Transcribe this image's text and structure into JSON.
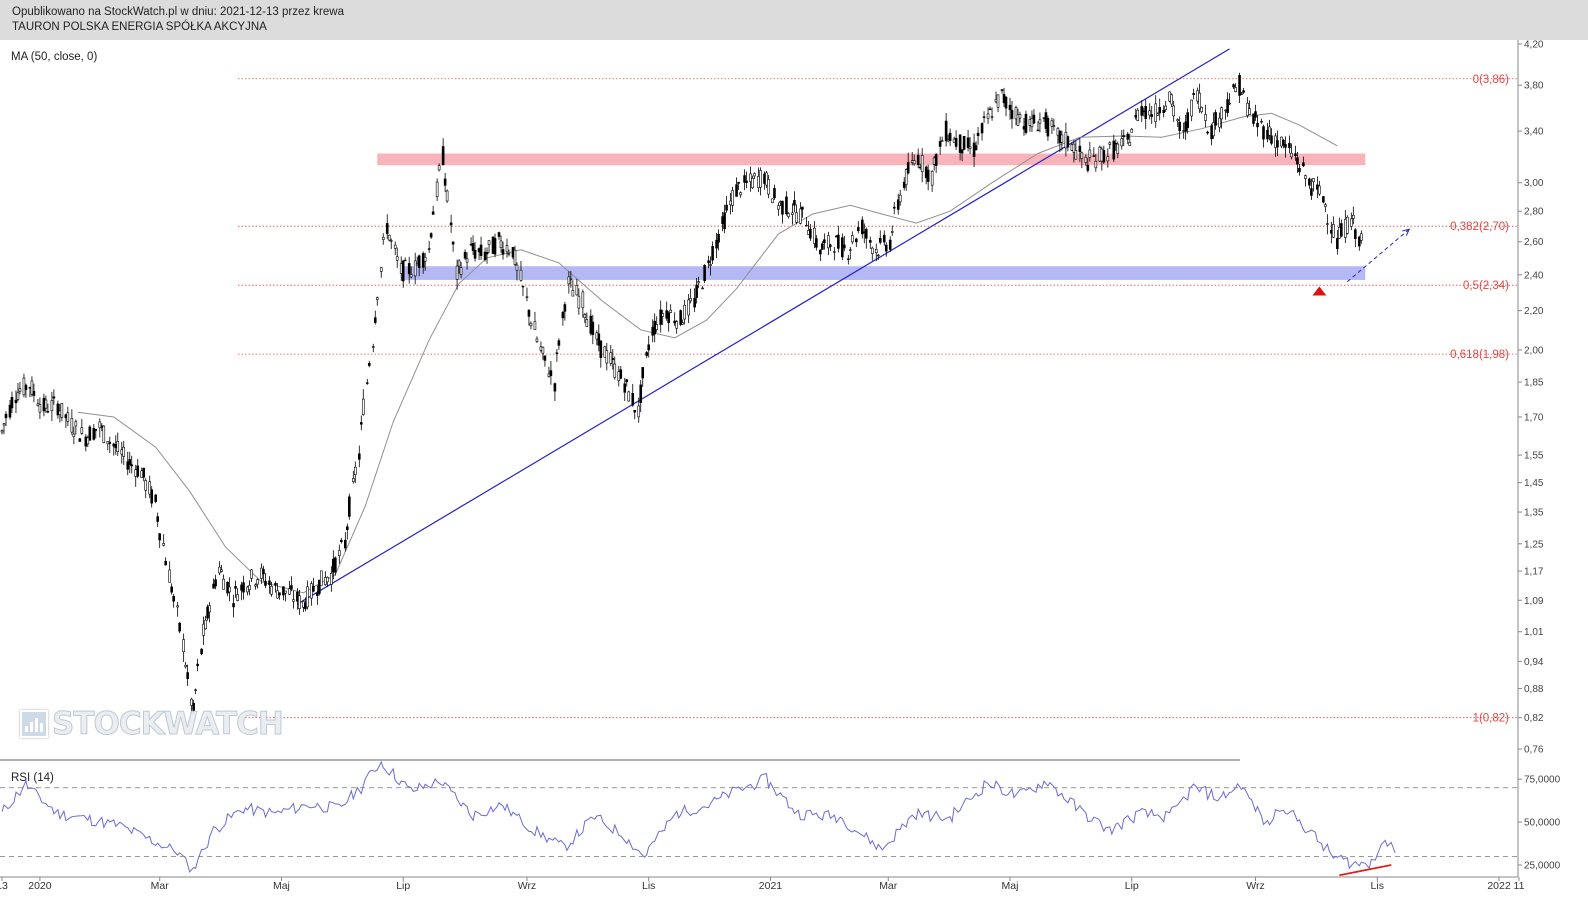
{
  "header": {
    "published": "Opublikowano na StockWatch.pl w dniu: 2021-12-13 przez krewa",
    "instrument": "TAURON POLSKA ENERGIA SPÓŁKA AKCYJNA"
  },
  "indicator_label": "MA (50, close, 0)",
  "rsi_label": "RSI (14)",
  "watermark": "STOCKWATCH",
  "colors": {
    "fib": "#e04848",
    "resistance_zone": "#f8b4ba",
    "support_zone": "#b4b8f4",
    "trendline": "#2222cc",
    "ma": "#909090",
    "rsi": "#6b6bd6",
    "rsi_divergence": "#e02020",
    "candles": "#000000"
  },
  "chart_data": [
    {
      "type": "line",
      "subtype": "candlestick",
      "title": "TAURON POLSKA ENERGIA SPÓŁKA AKCYJNA",
      "y_scale": "log",
      "ylim": [
        0.74,
        4.22
      ],
      "y_ticks": [
        "4,20",
        "3,80",
        "3,40",
        "3,00",
        "2,80",
        "2,60",
        "2,40",
        "2,20",
        "2,00",
        "1,85",
        "1,70",
        "1,55",
        "1,45",
        "1,35",
        "1,25",
        "1,17",
        "1,09",
        "1,01",
        "0,94",
        "0,88",
        "0,82",
        "0,76"
      ],
      "x_ticks": [
        "13",
        "2020",
        "Mar",
        "Maj",
        "Lip",
        "Wrz",
        "Lis",
        "2021",
        "Mar",
        "Maj",
        "Lip",
        "Wrz",
        "Lis",
        "2022",
        "11"
      ],
      "xlim": [
        "2019-12-12",
        "2022-01-10"
      ],
      "series": [
        {
          "name": "close",
          "points": [
            [
              "2019-12-13",
              1.64
            ],
            [
              "2019-12-20",
              1.8
            ],
            [
              "2019-12-27",
              1.84
            ],
            [
              "2020-01-03",
              1.74
            ],
            [
              "2020-01-10",
              1.75
            ],
            [
              "2020-01-17",
              1.67
            ],
            [
              "2020-01-24",
              1.62
            ],
            [
              "2020-01-31",
              1.66
            ],
            [
              "2020-02-07",
              1.59
            ],
            [
              "2020-02-14",
              1.53
            ],
            [
              "2020-02-21",
              1.49
            ],
            [
              "2020-02-28",
              1.38
            ],
            [
              "2020-03-06",
              1.16
            ],
            [
              "2020-03-13",
              0.98
            ],
            [
              "2020-03-18",
              0.83
            ],
            [
              "2020-03-24",
              1.02
            ],
            [
              "2020-03-31",
              1.18
            ],
            [
              "2020-04-07",
              1.1
            ],
            [
              "2020-04-14",
              1.14
            ],
            [
              "2020-04-21",
              1.16
            ],
            [
              "2020-04-28",
              1.12
            ],
            [
              "2020-05-05",
              1.11
            ],
            [
              "2020-05-12",
              1.08
            ],
            [
              "2020-05-19",
              1.13
            ],
            [
              "2020-05-26",
              1.16
            ],
            [
              "2020-06-02",
              1.25
            ],
            [
              "2020-06-09",
              1.55
            ],
            [
              "2020-06-16",
              2.05
            ],
            [
              "2020-06-23",
              2.7
            ],
            [
              "2020-06-30",
              2.42
            ],
            [
              "2020-07-07",
              2.44
            ],
            [
              "2020-07-14",
              2.55
            ],
            [
              "2020-07-21",
              3.2
            ],
            [
              "2020-07-28",
              2.4
            ],
            [
              "2020-08-04",
              2.55
            ],
            [
              "2020-08-11",
              2.52
            ],
            [
              "2020-08-18",
              2.6
            ],
            [
              "2020-08-25",
              2.55
            ],
            [
              "2020-09-01",
              2.25
            ],
            [
              "2020-09-08",
              2.0
            ],
            [
              "2020-09-15",
              1.85
            ],
            [
              "2020-09-22",
              2.35
            ],
            [
              "2020-09-29",
              2.25
            ],
            [
              "2020-10-06",
              2.05
            ],
            [
              "2020-10-13",
              1.95
            ],
            [
              "2020-10-20",
              1.85
            ],
            [
              "2020-10-27",
              1.72
            ],
            [
              "2020-11-03",
              2.1
            ],
            [
              "2020-11-10",
              2.2
            ],
            [
              "2020-11-17",
              2.15
            ],
            [
              "2020-11-24",
              2.25
            ],
            [
              "2020-12-01",
              2.45
            ],
            [
              "2020-12-08",
              2.7
            ],
            [
              "2020-12-15",
              2.95
            ],
            [
              "2020-12-22",
              3.0
            ],
            [
              "2020-12-29",
              3.05
            ],
            [
              "2021-01-05",
              2.85
            ],
            [
              "2021-01-12",
              2.82
            ],
            [
              "2021-01-19",
              2.75
            ],
            [
              "2021-01-26",
              2.55
            ],
            [
              "2021-02-02",
              2.6
            ],
            [
              "2021-02-09",
              2.55
            ],
            [
              "2021-02-16",
              2.7
            ],
            [
              "2021-02-23",
              2.55
            ],
            [
              "2021-03-02",
              2.6
            ],
            [
              "2021-03-09",
              3.0
            ],
            [
              "2021-03-16",
              3.2
            ],
            [
              "2021-03-23",
              3.05
            ],
            [
              "2021-03-30",
              3.4
            ],
            [
              "2021-04-06",
              3.3
            ],
            [
              "2021-04-13",
              3.25
            ],
            [
              "2021-04-20",
              3.5
            ],
            [
              "2021-04-27",
              3.7
            ],
            [
              "2021-05-04",
              3.55
            ],
            [
              "2021-05-11",
              3.45
            ],
            [
              "2021-05-18",
              3.5
            ],
            [
              "2021-05-25",
              3.35
            ],
            [
              "2021-06-01",
              3.3
            ],
            [
              "2021-06-08",
              3.15
            ],
            [
              "2021-06-15",
              3.2
            ],
            [
              "2021-06-22",
              3.25
            ],
            [
              "2021-06-29",
              3.3
            ],
            [
              "2021-07-06",
              3.6
            ],
            [
              "2021-07-13",
              3.55
            ],
            [
              "2021-07-20",
              3.7
            ],
            [
              "2021-07-27",
              3.35
            ],
            [
              "2021-08-03",
              3.75
            ],
            [
              "2021-08-10",
              3.4
            ],
            [
              "2021-08-17",
              3.6
            ],
            [
              "2021-08-24",
              3.8
            ],
            [
              "2021-08-31",
              3.5
            ],
            [
              "2021-09-07",
              3.4
            ],
            [
              "2021-09-14",
              3.3
            ],
            [
              "2021-09-21",
              3.2
            ],
            [
              "2021-09-28",
              3.0
            ],
            [
              "2021-10-05",
              2.9
            ],
            [
              "2021-10-12",
              2.6
            ],
            [
              "2021-10-19",
              2.75
            ],
            [
              "2021-10-26",
              2.55
            ]
          ]
        },
        {
          "name": "MA (50, close, 0)",
          "points": [
            [
              "2020-01-20",
              1.72
            ],
            [
              "2020-02-07",
              1.7
            ],
            [
              "2020-02-28",
              1.58
            ],
            [
              "2020-03-16",
              1.42
            ],
            [
              "2020-04-03",
              1.24
            ],
            [
              "2020-04-21",
              1.14
            ],
            [
              "2020-05-12",
              1.11
            ],
            [
              "2020-05-28",
              1.16
            ],
            [
              "2020-06-12",
              1.37
            ],
            [
              "2020-06-26",
              1.68
            ],
            [
              "2020-07-14",
              2.05
            ],
            [
              "2020-07-29",
              2.35
            ],
            [
              "2020-08-12",
              2.5
            ],
            [
              "2020-08-29",
              2.55
            ],
            [
              "2020-09-17",
              2.47
            ],
            [
              "2020-10-09",
              2.25
            ],
            [
              "2020-10-28",
              2.1
            ],
            [
              "2020-11-14",
              2.06
            ],
            [
              "2020-11-30",
              2.15
            ],
            [
              "2020-12-15",
              2.32
            ],
            [
              "2021-01-05",
              2.65
            ],
            [
              "2021-01-22",
              2.78
            ],
            [
              "2021-02-10",
              2.84
            ],
            [
              "2021-02-26",
              2.78
            ],
            [
              "2021-03-15",
              2.72
            ],
            [
              "2021-04-01",
              2.8
            ],
            [
              "2021-04-22",
              3.0
            ],
            [
              "2021-05-15",
              3.22
            ],
            [
              "2021-06-05",
              3.35
            ],
            [
              "2021-06-26",
              3.36
            ],
            [
              "2021-07-16",
              3.35
            ],
            [
              "2021-08-05",
              3.42
            ],
            [
              "2021-08-26",
              3.52
            ],
            [
              "2021-09-09",
              3.55
            ],
            [
              "2021-09-23",
              3.45
            ],
            [
              "2021-10-12",
              3.28
            ]
          ]
        },
        {
          "name": "trendline",
          "points": [
            [
              "2020-05-09",
              1.08
            ],
            [
              "2021-08-19",
              4.15
            ]
          ]
        }
      ],
      "fibonacci": [
        {
          "label": "0(3,86)",
          "value": 3.86
        },
        {
          "label": "0,382(2,70)",
          "value": 2.7
        },
        {
          "label": "0,5(2,34)",
          "value": 2.34
        },
        {
          "label": "0,618(1,98)",
          "value": 1.98
        },
        {
          "label": "1(0,82)",
          "value": 0.82
        }
      ],
      "zones": [
        {
          "value_low": 3.13,
          "value_high": 3.22,
          "x_start": "2020-06-18",
          "x_end": "2021-10-26"
        },
        {
          "value_low": 2.37,
          "value_high": 2.45,
          "x_start": "2020-06-30",
          "x_end": "2021-10-26"
        }
      ],
      "projection": [
        [
          "2021-10-17",
          2.36
        ],
        [
          "2021-11-17",
          2.68
        ]
      ],
      "marker": {
        "x": "2021-10-03",
        "value": 2.31,
        "shape": "triangle-up"
      }
    },
    {
      "type": "line",
      "title": "RSI (14)",
      "ylim": [
        18,
        85
      ],
      "y_ticks": [
        "75,0000",
        "50,0000",
        "25,0000"
      ],
      "reference_lines": [
        70,
        30
      ],
      "series": [
        {
          "name": "RSI (14)",
          "points": [
            [
              "2019-12-13",
              55
            ],
            [
              "2019-12-25",
              72
            ],
            [
              "2020-01-10",
              55
            ],
            [
              "2020-01-25",
              52
            ],
            [
              "2020-02-10",
              48
            ],
            [
              "2020-02-25",
              40
            ],
            [
              "2020-03-10",
              33
            ],
            [
              "2020-03-18",
              22
            ],
            [
              "2020-03-28",
              45
            ],
            [
              "2020-04-12",
              58
            ],
            [
              "2020-04-28",
              55
            ],
            [
              "2020-05-15",
              60
            ],
            [
              "2020-05-30",
              58
            ],
            [
              "2020-06-10",
              70
            ],
            [
              "2020-06-20",
              85
            ],
            [
              "2020-07-05",
              68
            ],
            [
              "2020-07-20",
              74
            ],
            [
              "2020-08-05",
              54
            ],
            [
              "2020-08-20",
              60
            ],
            [
              "2020-09-05",
              45
            ],
            [
              "2020-09-20",
              35
            ],
            [
              "2020-10-05",
              53
            ],
            [
              "2020-10-20",
              42
            ],
            [
              "2020-10-30",
              30
            ],
            [
              "2020-11-15",
              55
            ],
            [
              "2020-12-01",
              60
            ],
            [
              "2020-12-15",
              68
            ],
            [
              "2020-12-30",
              75
            ],
            [
              "2021-01-15",
              55
            ],
            [
              "2021-02-05",
              53
            ],
            [
              "2021-02-26",
              34
            ],
            [
              "2021-03-15",
              55
            ],
            [
              "2021-04-01",
              52
            ],
            [
              "2021-04-20",
              73
            ],
            [
              "2021-05-05",
              65
            ],
            [
              "2021-05-20",
              74
            ],
            [
              "2021-06-05",
              57
            ],
            [
              "2021-06-20",
              45
            ],
            [
              "2021-07-05",
              55
            ],
            [
              "2021-07-20",
              53
            ],
            [
              "2021-08-01",
              70
            ],
            [
              "2021-08-15",
              64
            ],
            [
              "2021-08-25",
              72
            ],
            [
              "2021-09-07",
              48
            ],
            [
              "2021-09-15",
              60
            ],
            [
              "2021-09-28",
              45
            ],
            [
              "2021-10-10",
              30
            ],
            [
              "2021-10-20",
              26
            ],
            [
              "2021-10-28",
              25
            ],
            [
              "2021-11-05",
              40
            ],
            [
              "2021-11-10",
              32
            ]
          ]
        },
        {
          "name": "divergence",
          "points": [
            [
              "2021-10-13",
              19
            ],
            [
              "2021-11-08",
              25
            ]
          ]
        }
      ]
    }
  ]
}
